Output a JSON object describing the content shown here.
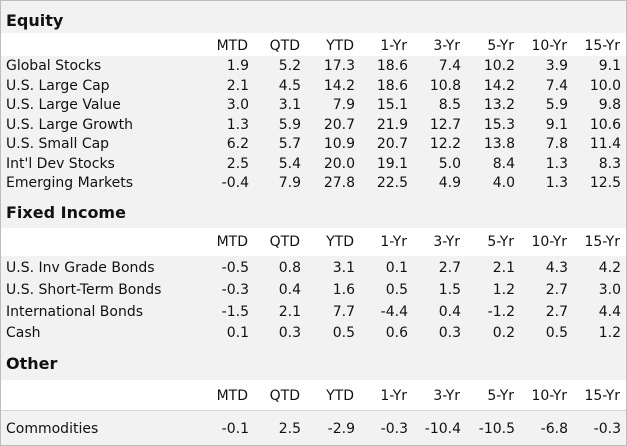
{
  "columns": [
    "MTD",
    "QTD",
    "YTD",
    "1-Yr",
    "3-Yr",
    "5-Yr",
    "10-Yr",
    "15-Yr"
  ],
  "sections": [
    {
      "title": "Equity",
      "rows": [
        {
          "label": "Global Stocks",
          "values": [
            "1.9",
            "5.2",
            "17.3",
            "18.6",
            "7.4",
            "10.2",
            "3.9",
            "9.1"
          ]
        },
        {
          "label": "U.S. Large Cap",
          "values": [
            "2.1",
            "4.5",
            "14.2",
            "18.6",
            "10.8",
            "14.2",
            "7.4",
            "10.0"
          ]
        },
        {
          "label": "U.S. Large Value",
          "values": [
            "3.0",
            "3.1",
            "7.9",
            "15.1",
            "8.5",
            "13.2",
            "5.9",
            "9.8"
          ]
        },
        {
          "label": "U.S. Large Growth",
          "values": [
            "1.3",
            "5.9",
            "20.7",
            "21.9",
            "12.7",
            "15.3",
            "9.1",
            "10.6"
          ]
        },
        {
          "label": "U.S. Small Cap",
          "values": [
            "6.2",
            "5.7",
            "10.9",
            "20.7",
            "12.2",
            "13.8",
            "7.8",
            "11.4"
          ]
        },
        {
          "label": "Int'l Dev Stocks",
          "values": [
            "2.5",
            "5.4",
            "20.0",
            "19.1",
            "5.0",
            "8.4",
            "1.3",
            "8.3"
          ]
        },
        {
          "label": "Emerging Markets",
          "values": [
            "-0.4",
            "7.9",
            "27.8",
            "22.5",
            "4.9",
            "4.0",
            "1.3",
            "12.5"
          ]
        }
      ]
    },
    {
      "title": "Fixed Income",
      "rows": [
        {
          "label": "U.S. Inv Grade Bonds",
          "values": [
            "-0.5",
            "0.8",
            "3.1",
            "0.1",
            "2.7",
            "2.1",
            "4.3",
            "4.2"
          ]
        },
        {
          "label": "U.S. Short-Term Bonds",
          "values": [
            "-0.3",
            "0.4",
            "1.6",
            "0.5",
            "1.5",
            "1.2",
            "2.7",
            "3.0"
          ]
        },
        {
          "label": "International Bonds",
          "values": [
            "-1.5",
            "2.1",
            "7.7",
            "-4.4",
            "0.4",
            "-1.2",
            "2.7",
            "4.4"
          ]
        },
        {
          "label": "Cash",
          "values": [
            "0.1",
            "0.3",
            "0.5",
            "0.6",
            "0.3",
            "0.2",
            "0.5",
            "1.2"
          ]
        }
      ]
    },
    {
      "title": "Other",
      "rows": [
        {
          "label": "Commodities",
          "values": [
            "-0.1",
            "2.5",
            "-2.9",
            "-0.3",
            "-10.4",
            "-10.5",
            "-6.8",
            "-0.3"
          ]
        }
      ]
    }
  ]
}
